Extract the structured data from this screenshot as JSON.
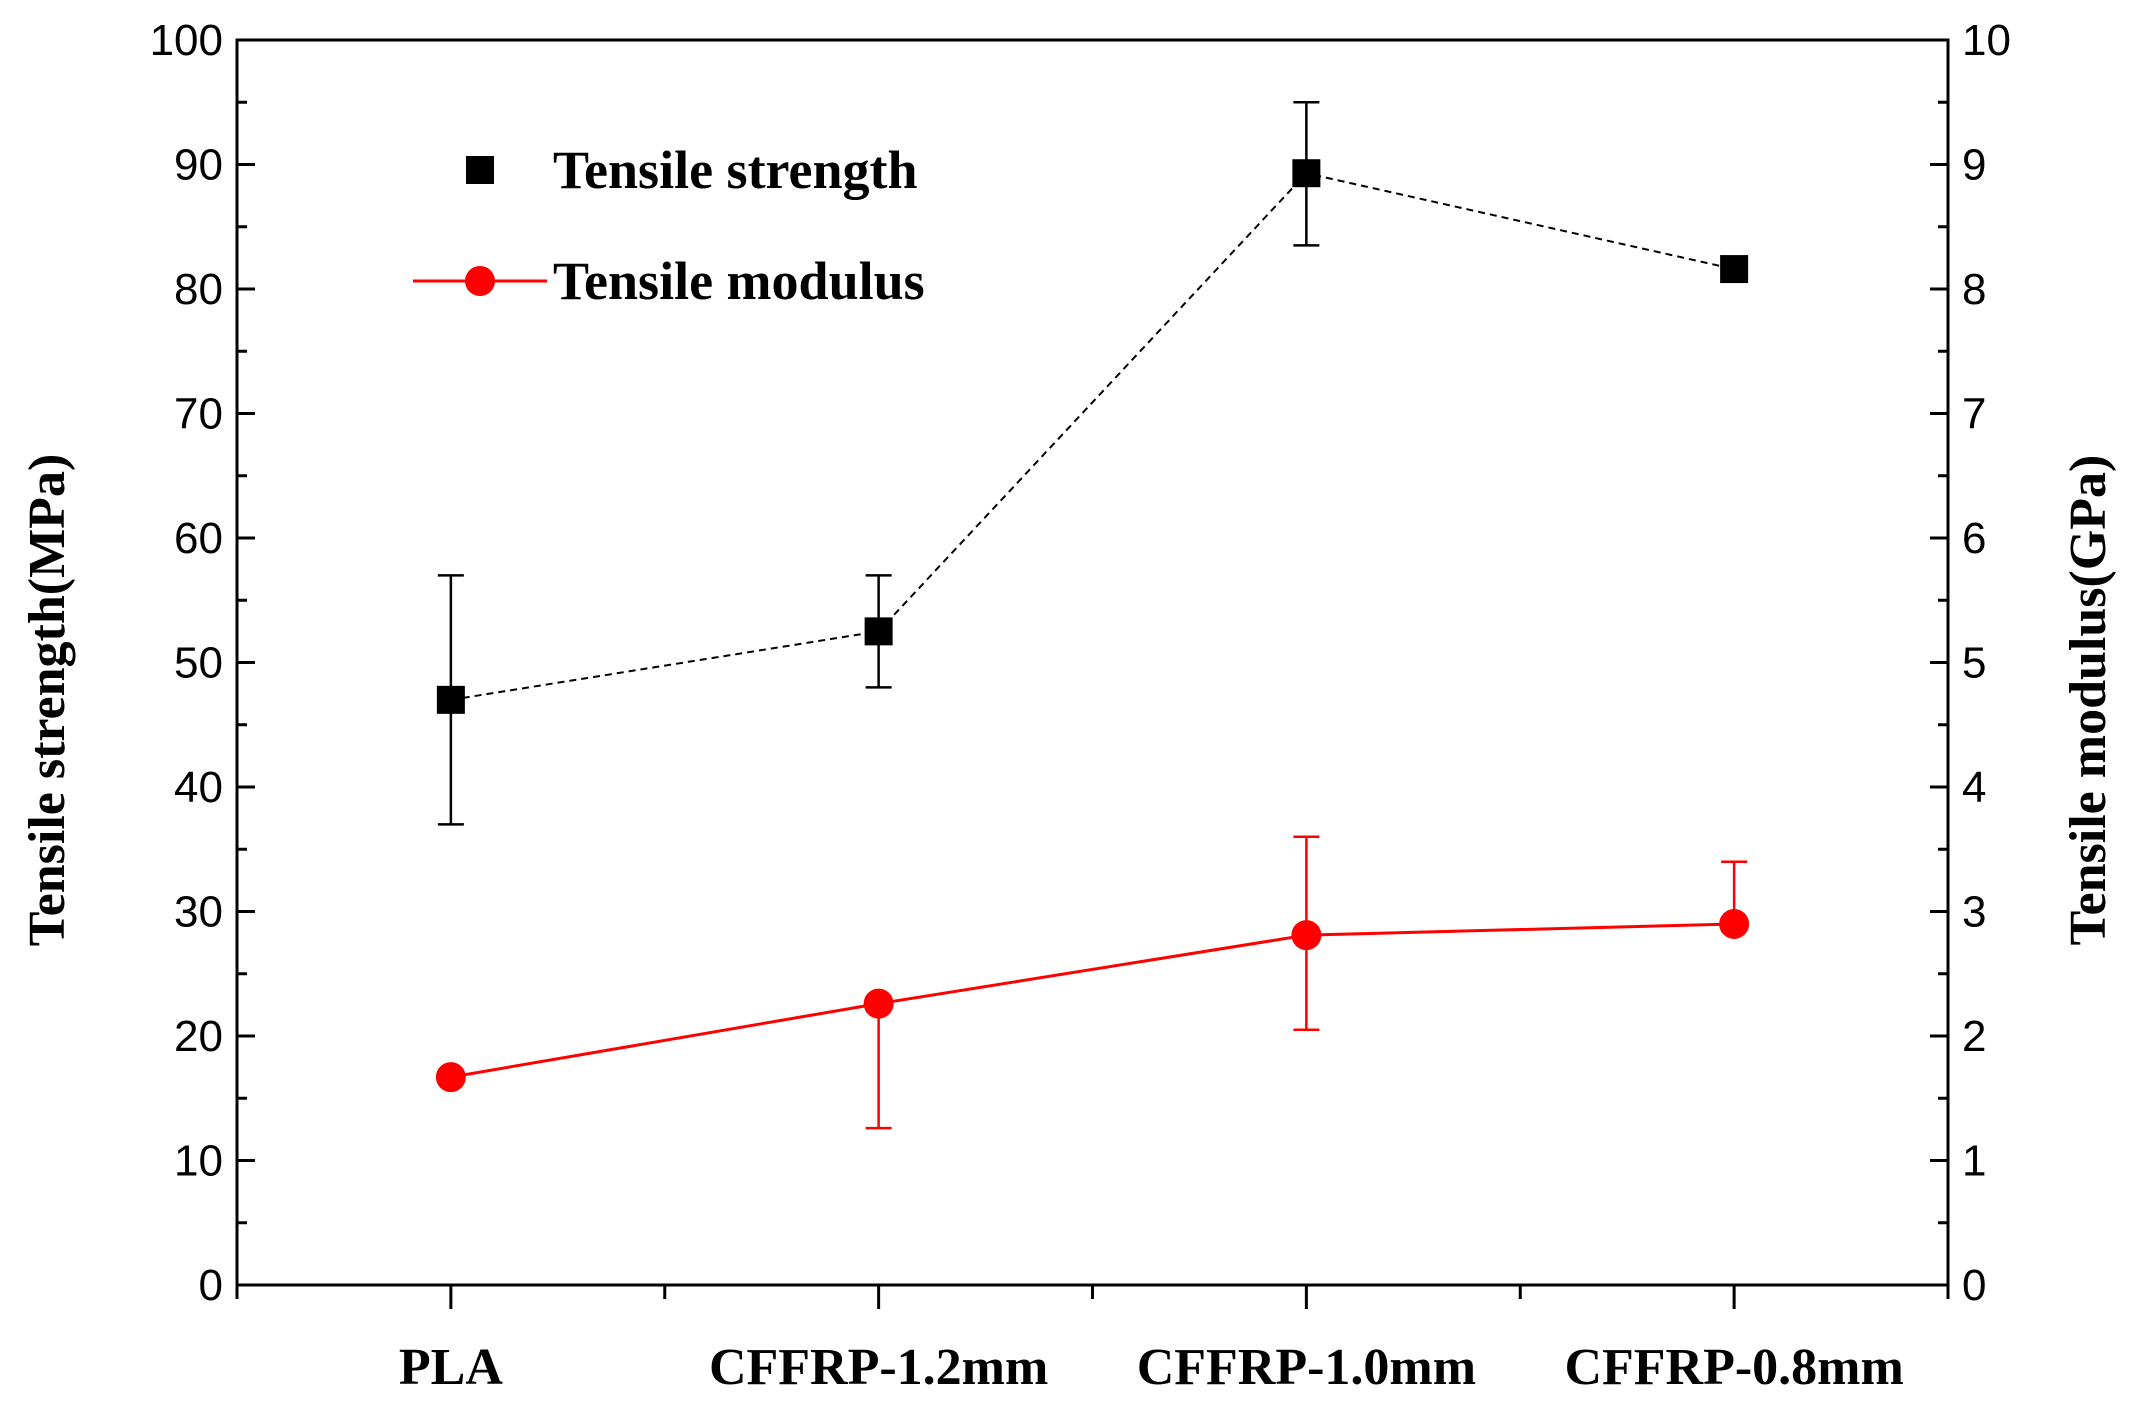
{
  "chart_data": {
    "type": "line",
    "categories": [
      "PLA",
      "CFFRP-1.2mm",
      "CFFRP-1.0mm",
      "CFFRP-0.8mm"
    ],
    "left_axis": {
      "label": "Tensile strength(MPa)",
      "ylim": [
        0,
        100
      ],
      "ticks": [
        "0",
        "10",
        "20",
        "30",
        "40",
        "50",
        "60",
        "70",
        "80",
        "90",
        "100"
      ]
    },
    "right_axis": {
      "label": "Tensile modulus(GPa)",
      "ylim": [
        0,
        10
      ],
      "ticks": [
        "0",
        "1",
        "2",
        "3",
        "4",
        "5",
        "6",
        "7",
        "8",
        "9",
        "10"
      ]
    },
    "series": [
      {
        "name": "Tensile strength",
        "axis": "left",
        "color": "#000000",
        "marker": "square",
        "line_style": "dashed",
        "values": [
          47,
          52.5,
          89.3,
          81.6
        ],
        "error_low": [
          37,
          48,
          83.5,
          81.6
        ],
        "error_high": [
          57,
          57,
          95,
          81.6
        ]
      },
      {
        "name": "Tensile modulus",
        "axis": "right",
        "color": "#ff0000",
        "marker": "circle",
        "line_style": "solid",
        "values": [
          1.67,
          2.26,
          2.81,
          2.9
        ],
        "error_low": [
          1.67,
          1.26,
          2.05,
          2.9
        ],
        "error_high": [
          1.67,
          2.26,
          3.6,
          3.4
        ]
      }
    ],
    "legend": {
      "placement": "top-left"
    },
    "grid": false
  }
}
